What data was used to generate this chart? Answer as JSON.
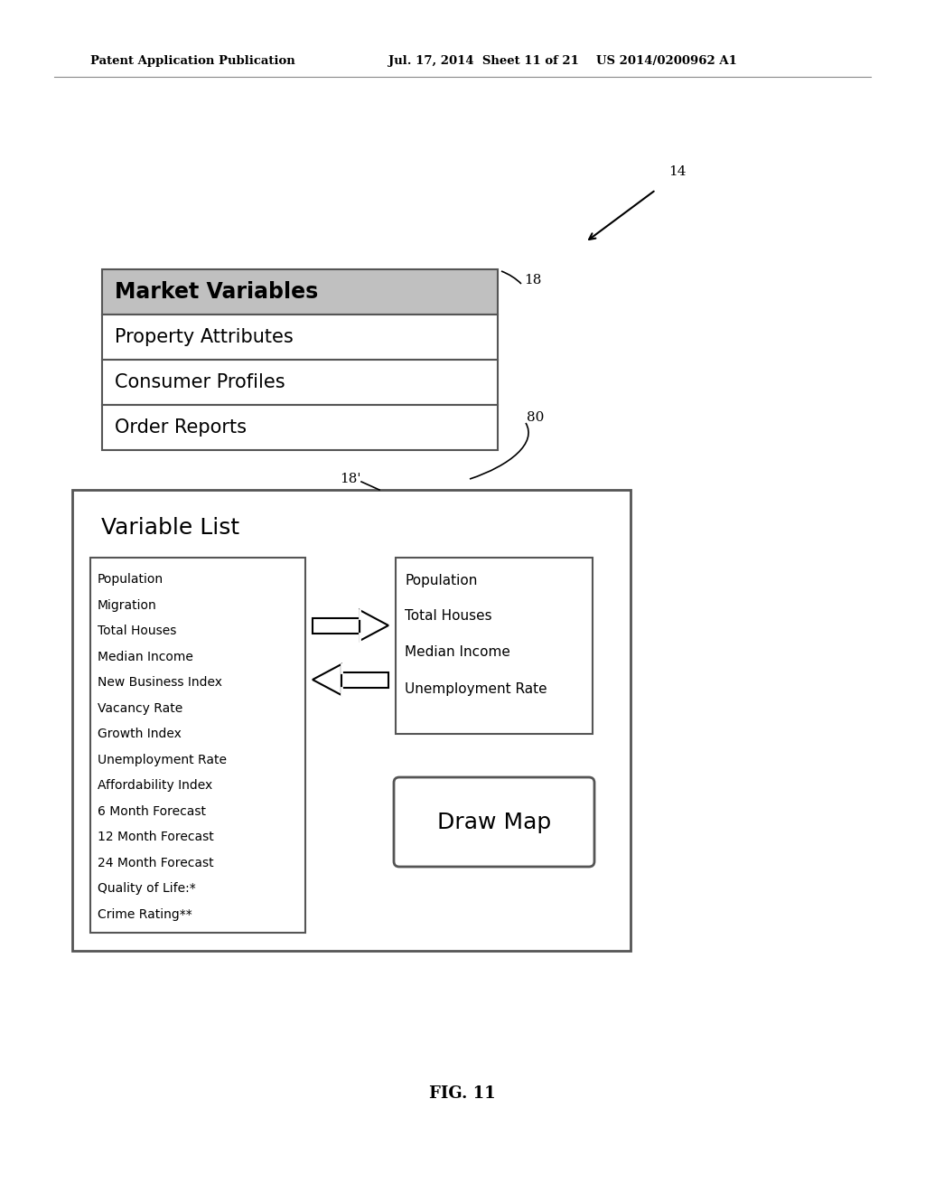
{
  "bg_color": "#ffffff",
  "header_text_left": "Patent Application Publication",
  "header_text_mid": "Jul. 17, 2014  Sheet 11 of 21",
  "header_text_right": "US 2014/0200962 A1",
  "fig_label": "FIG. 11",
  "label_14": "14",
  "label_18": "18",
  "label_18prime": "18'",
  "label_80": "80",
  "menu_items": [
    "Market Variables",
    "Property Attributes",
    "Consumer Profiles",
    "Order Reports"
  ],
  "menu_header_bg": "#c0c0c0",
  "menu_item_bg": "#ffffff",
  "menu_border": "#555555",
  "variable_list_title": "Variable List",
  "left_list_items": [
    "Population",
    "Migration",
    "Total Houses",
    "Median Income",
    "New Business Index",
    "Vacancy Rate",
    "Growth Index",
    "Unemployment Rate",
    "Affordability Index",
    "6 Month Forecast",
    "12 Month Forecast",
    "24 Month Forecast",
    "Quality of Life:*",
    "Crime Rating**"
  ],
  "right_list_items": [
    "Population",
    "Total Houses",
    "Median Income",
    "Unemployment Rate"
  ],
  "draw_map_text": "Draw Map",
  "text_color": "#000000",
  "border_color": "#555555"
}
